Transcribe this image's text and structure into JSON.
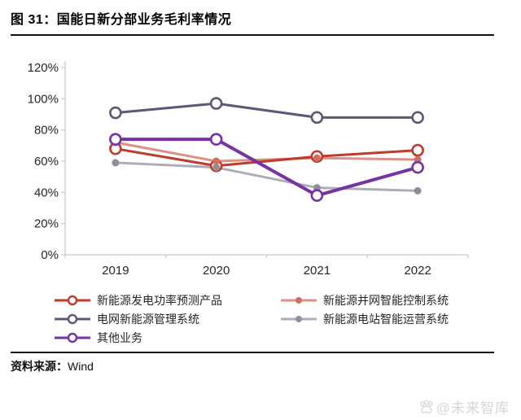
{
  "title": "图 31：国能日新分部业务毛利率情况",
  "source": {
    "label": "资料来源：",
    "value": "Wind"
  },
  "watermark": {
    "text": "@未来智库",
    "color": "#d6d6d6"
  },
  "axis": {
    "line_color": "#c9c9c9",
    "label_color": "#262626"
  },
  "chart_data": {
    "type": "line",
    "categories": [
      "2019",
      "2020",
      "2021",
      "2022"
    ],
    "series": [
      {
        "name": "新能源发电功率预测产品",
        "values": [
          68,
          57,
          63,
          67
        ],
        "color": "#bf3b2b",
        "marker": "open-circle"
      },
      {
        "name": "新能源并网智能控制系统",
        "values": [
          72,
          60,
          62,
          61
        ],
        "color": "#dc9186",
        "marker": "dot",
        "dot_color": "#ce7060"
      },
      {
        "name": "电网新能源管理系统",
        "values": [
          91,
          97,
          88,
          88
        ],
        "color": "#5a5a78",
        "marker": "open-circle"
      },
      {
        "name": "新能源电站智能运营系统",
        "values": [
          59,
          56,
          43,
          41
        ],
        "color": "#adadba",
        "marker": "dot",
        "dot_color": "#8f8f9c"
      },
      {
        "name": "其他业务",
        "values": [
          74,
          74,
          38,
          56
        ],
        "color": "#7633a2",
        "marker": "open-circle"
      }
    ],
    "ylim": [
      0,
      120
    ],
    "ytick_step": 20,
    "ytick_suffix": "%",
    "grid": false,
    "legend_position": "bottom",
    "legend_columns": [
      [
        0,
        2,
        4
      ],
      [
        1,
        3
      ]
    ]
  }
}
